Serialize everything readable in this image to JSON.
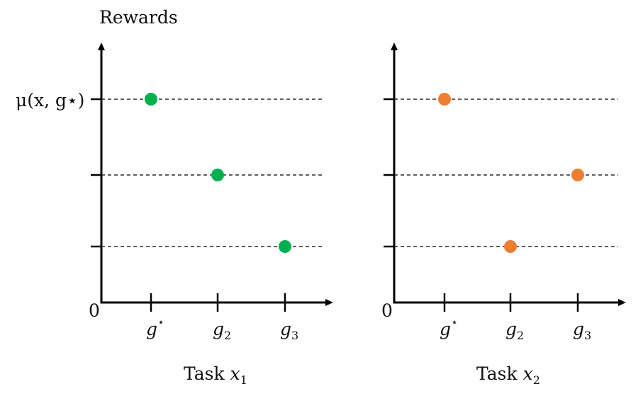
{
  "figure": {
    "y_axis_title": "Rewards",
    "y_label_top": "μ(x, g⋆)",
    "origin_label": "0"
  },
  "panels": [
    {
      "name": "task-x1",
      "title_text": "Task ",
      "title_var": "x",
      "title_sub": "1",
      "color": "#00b050",
      "x_ticks": [
        {
          "base": "g",
          "sup": "⋆",
          "sub": ""
        },
        {
          "base": "g",
          "sup": "",
          "sub": "2"
        },
        {
          "base": "g",
          "sup": "",
          "sub": "3"
        }
      ],
      "points": [
        {
          "x": "g⋆",
          "level": 3
        },
        {
          "x": "g2",
          "level": 2
        },
        {
          "x": "g3",
          "level": 1
        }
      ]
    },
    {
      "name": "task-x2",
      "title_text": "Task ",
      "title_var": "x",
      "title_sub": "2",
      "color": "#ed7d31",
      "x_ticks": [
        {
          "base": "g",
          "sup": "⋆",
          "sub": ""
        },
        {
          "base": "g",
          "sup": "",
          "sub": "2"
        },
        {
          "base": "g",
          "sup": "",
          "sub": "3"
        }
      ],
      "points": [
        {
          "x": "g⋆",
          "level": 3
        },
        {
          "x": "g3",
          "level": 2
        },
        {
          "x": "g2",
          "level": 1
        }
      ]
    }
  ]
}
